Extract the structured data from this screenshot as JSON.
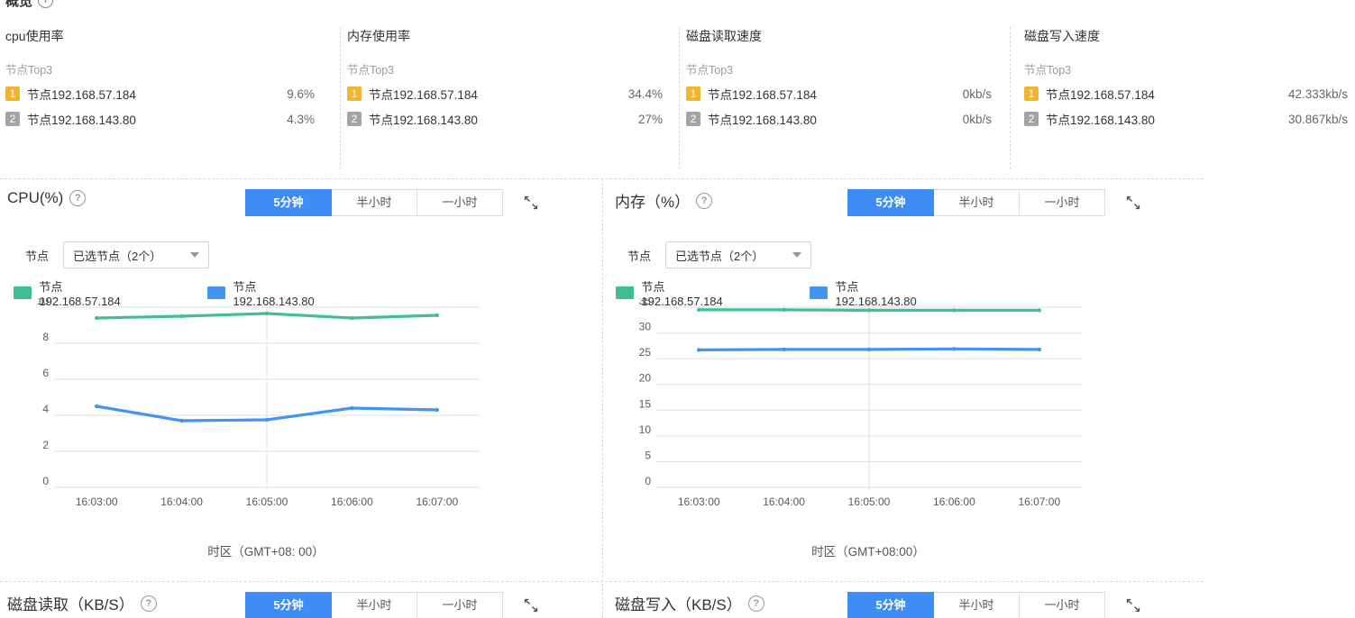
{
  "page": {
    "title": "概览"
  },
  "colors": {
    "accent_blue": "#3d8df5",
    "series_green": "#41bf94",
    "series_blue": "#4294f0",
    "rank1_gold": "#f0b431",
    "rank2_gray": "#a4a4a4"
  },
  "overview": {
    "panels": [
      {
        "title": "cpu使用率",
        "subtitle": "节点Top3",
        "rows": [
          {
            "rank": "1",
            "name": "节点192.168.57.184",
            "value": "9.6%"
          },
          {
            "rank": "2",
            "name": "节点192.168.143.80",
            "value": "4.3%"
          }
        ]
      },
      {
        "title": "内存使用率",
        "subtitle": "节点Top3",
        "rows": [
          {
            "rank": "1",
            "name": "节点192.168.57.184",
            "value": "34.4%"
          },
          {
            "rank": "2",
            "name": "节点192.168.143.80",
            "value": "27%"
          }
        ]
      },
      {
        "title": "磁盘读取速度",
        "subtitle": "节点Top3",
        "rows": [
          {
            "rank": "1",
            "name": "节点192.168.57.184",
            "value": "0kb/s"
          },
          {
            "rank": "2",
            "name": "节点192.168.143.80",
            "value": "0kb/s"
          }
        ]
      },
      {
        "title": "磁盘写入速度",
        "subtitle": "节点Top3",
        "rows": [
          {
            "rank": "1",
            "name": "节点192.168.57.184",
            "value": "42.333kb/s"
          },
          {
            "rank": "2",
            "name": "节点192.168.143.80",
            "value": "30.867kb/s"
          }
        ]
      }
    ]
  },
  "controls": {
    "time_ranges": [
      "5分钟",
      "半小时",
      "一小时"
    ],
    "active_range": "5分钟",
    "node_label": "节点",
    "node_select_value": "已选节点（2个）"
  },
  "panels": {
    "cpu": {
      "title": "CPU(%)",
      "footer": "时区（GMT+08: 00）"
    },
    "memory": {
      "title": "内存（%）",
      "footer": "时区（GMT+08:00）"
    },
    "disk_read": {
      "title": "磁盘读取（KB/S）"
    },
    "disk_write": {
      "title": "磁盘写入（KB/S）"
    }
  },
  "chart_data": [
    {
      "type": "line",
      "title": "CPU(%)",
      "x": [
        "16:03:00",
        "16:04:00",
        "16:05:00",
        "16:06:00",
        "16:07:00"
      ],
      "series": [
        {
          "name": "节点192.168.57.184",
          "color": "#41bf94",
          "values": [
            9.4,
            9.5,
            9.65,
            9.4,
            9.55
          ]
        },
        {
          "name": "节点192.168.143.80",
          "color": "#4294f0",
          "values": [
            4.5,
            3.7,
            3.75,
            4.4,
            4.3
          ]
        }
      ],
      "ylim": [
        0,
        10
      ],
      "ytick_step": 2,
      "xlabel": "时区（GMT+08: 00）",
      "ylabel": "",
      "grid": true,
      "legend_position": "top"
    },
    {
      "type": "line",
      "title": "内存（%）",
      "x": [
        "16:03:00",
        "16:04:00",
        "16:05:00",
        "16:06:00",
        "16:07:00"
      ],
      "series": [
        {
          "name": "节点192.168.57.184",
          "color": "#41bf94",
          "values": [
            34.5,
            34.5,
            34.4,
            34.4,
            34.4
          ]
        },
        {
          "name": "节点192.168.143.80",
          "color": "#4294f0",
          "values": [
            26.7,
            26.8,
            26.8,
            26.9,
            26.8
          ]
        }
      ],
      "ylim": [
        0,
        35
      ],
      "ytick_step": 5,
      "xlabel": "时区（GMT+08:00）",
      "ylabel": "",
      "grid": true,
      "legend_position": "top"
    }
  ]
}
